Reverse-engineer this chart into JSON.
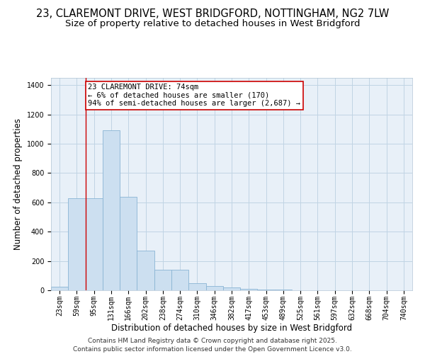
{
  "title_line1": "23, CLAREMONT DRIVE, WEST BRIDGFORD, NOTTINGHAM, NG2 7LW",
  "title_line2": "Size of property relative to detached houses in West Bridgford",
  "xlabel": "Distribution of detached houses by size in West Bridgford",
  "ylabel": "Number of detached properties",
  "categories": [
    "23sqm",
    "59sqm",
    "95sqm",
    "131sqm",
    "166sqm",
    "202sqm",
    "238sqm",
    "274sqm",
    "310sqm",
    "346sqm",
    "382sqm",
    "417sqm",
    "453sqm",
    "489sqm",
    "525sqm",
    "561sqm",
    "597sqm",
    "632sqm",
    "668sqm",
    "704sqm",
    "740sqm"
  ],
  "values": [
    25,
    630,
    630,
    1090,
    640,
    270,
    140,
    140,
    50,
    30,
    20,
    10,
    5,
    3,
    2,
    1,
    1,
    0,
    0,
    0,
    0
  ],
  "bar_color": "#ccdff0",
  "bar_edge_color": "#8ab4d4",
  "annotation_text": "23 CLAREMONT DRIVE: 74sqm\n← 6% of detached houses are smaller (170)\n94% of semi-detached houses are larger (2,687) →",
  "annotation_box_color": "#ffffff",
  "annotation_box_edge": "#cc0000",
  "vline_color": "#cc0000",
  "vline_x": 1.5,
  "ylim": [
    0,
    1450
  ],
  "yticks": [
    0,
    200,
    400,
    600,
    800,
    1000,
    1200,
    1400
  ],
  "grid_color": "#c0d4e4",
  "bg_color": "#e8f0f8",
  "footer": "Contains HM Land Registry data © Crown copyright and database right 2025.\nContains public sector information licensed under the Open Government Licence v3.0.",
  "title_fontsize": 10.5,
  "subtitle_fontsize": 9.5,
  "axis_label_fontsize": 8.5,
  "tick_fontsize": 7,
  "footer_fontsize": 6.5,
  "annotation_fontsize": 7.5
}
